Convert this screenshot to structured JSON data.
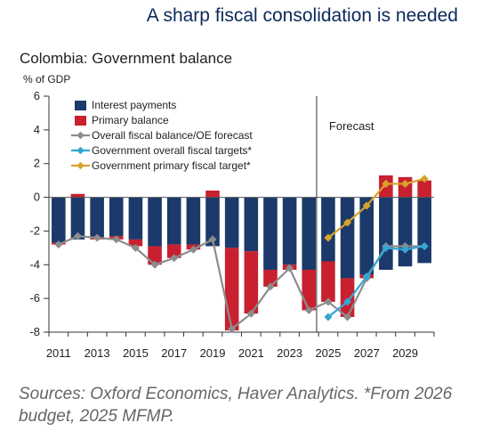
{
  "headline": "A sharp fiscal consolidation is needed",
  "source_note": "Sources: Oxford Economics, Haver Analytics. *From 2026 budget, 2025 MFMP.",
  "chart_data": {
    "type": "bar",
    "title": "Colombia: Government balance",
    "ylabel": "% of GDP",
    "ylim": [
      -8,
      6
    ],
    "yticks": [
      6,
      4,
      2,
      0,
      -2,
      -4,
      -6,
      -8
    ],
    "x": [
      2011,
      2012,
      2013,
      2014,
      2015,
      2016,
      2017,
      2018,
      2019,
      2020,
      2021,
      2022,
      2023,
      2024,
      2025,
      2026,
      2027,
      2028,
      2029,
      2030
    ],
    "xtick_labels": [
      "2011",
      "2013",
      "2015",
      "2017",
      "2019",
      "2021",
      "2023",
      "2025",
      "2027",
      "2029"
    ],
    "forecast_label": "Forecast",
    "forecast_start": 2025,
    "colors": {
      "interest": "#1b3a6b",
      "primary": "#c8202f",
      "overall": "#8c8c8c",
      "gov_overall": "#33a6d3",
      "gov_primary": "#d6a52a"
    },
    "legend": [
      {
        "label": "Interest payments",
        "kind": "bar",
        "color": "#1b3a6b"
      },
      {
        "label": "Primary balance",
        "kind": "bar",
        "color": "#c8202f"
      },
      {
        "label": "Overall fiscal balance/OE forecast",
        "kind": "line",
        "color": "#8c8c8c"
      },
      {
        "label": "Government overall fiscal targets*",
        "kind": "line",
        "color": "#33a6d3"
      },
      {
        "label": "Government primary fiscal target*",
        "kind": "line",
        "color": "#d6a52a"
      }
    ],
    "series": [
      {
        "name": "Interest payments",
        "type": "bar",
        "values": [
          -2.7,
          -2.5,
          -2.4,
          -2.3,
          -2.5,
          -2.9,
          -2.8,
          -2.8,
          -2.9,
          -3.0,
          -3.2,
          -4.3,
          -4.0,
          -4.3,
          -3.8,
          -4.8,
          -4.6,
          -4.3,
          -4.1,
          -3.9
        ]
      },
      {
        "name": "Primary balance",
        "type": "bar",
        "values": [
          -0.1,
          0.2,
          -0.1,
          -0.2,
          -0.4,
          -1.1,
          -0.8,
          -0.3,
          0.4,
          -4.9,
          -3.7,
          -1.0,
          -0.3,
          -2.4,
          -2.4,
          -2.3,
          -0.2,
          1.3,
          1.2,
          1.0
        ]
      },
      {
        "name": "Overall fiscal balance/OE forecast",
        "type": "line",
        "values": [
          -2.8,
          -2.3,
          -2.4,
          -2.5,
          -3.0,
          -4.0,
          -3.6,
          -3.1,
          -2.5,
          -7.8,
          -6.9,
          -5.3,
          -4.2,
          -6.7,
          -6.2,
          -7.1,
          -4.8,
          -2.9,
          -2.9,
          -2.9
        ]
      },
      {
        "name": "Government overall fiscal targets*",
        "type": "line",
        "x": [
          2025,
          2026,
          2027,
          2028,
          2029,
          2030
        ],
        "values": [
          -7.1,
          -6.2,
          -4.7,
          -3.0,
          -3.1,
          -2.9
        ]
      },
      {
        "name": "Government primary fiscal target*",
        "type": "line",
        "x": [
          2025,
          2026,
          2027,
          2028,
          2029,
          2030
        ],
        "values": [
          -2.4,
          -1.5,
          -0.5,
          0.8,
          0.8,
          1.1
        ]
      }
    ]
  }
}
